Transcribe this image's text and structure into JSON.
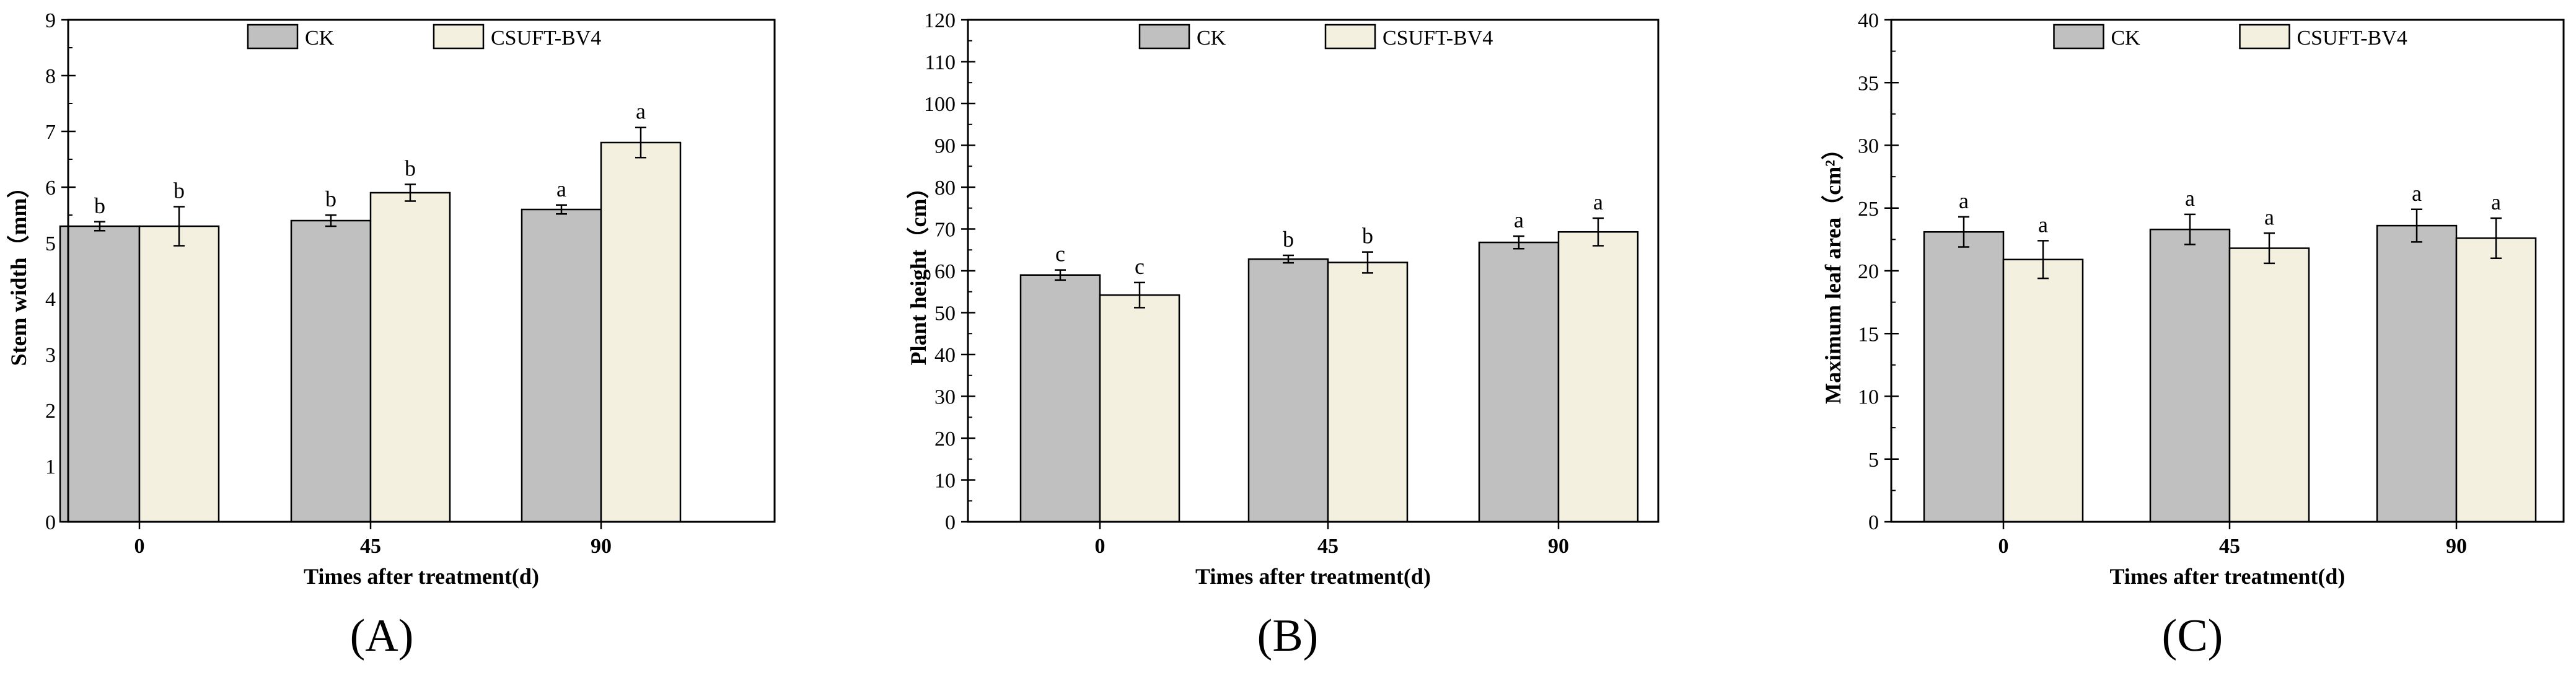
{
  "colors": {
    "ck": "#c0c0c0",
    "bv4": "#f3f0df",
    "stroke": "#000000"
  },
  "legend": {
    "series": [
      "CK",
      "CSUFT-BV4"
    ]
  },
  "chart_data": [
    {
      "type": "bar",
      "panel_label": "(A)",
      "categories": [
        "0",
        "45",
        "90"
      ],
      "series": [
        {
          "name": "CK",
          "values": [
            5.3,
            5.4,
            5.6
          ],
          "errors": [
            0.08,
            0.1,
            0.08
          ],
          "letters": [
            "b",
            "b",
            "a"
          ]
        },
        {
          "name": "CSUFT-BV4",
          "values": [
            5.3,
            5.9,
            6.8
          ],
          "errors": [
            0.35,
            0.15,
            0.27
          ],
          "letters": [
            "b",
            "b",
            "a"
          ]
        }
      ],
      "title": "",
      "xlabel": "Times after treatment(d)",
      "ylabel": "Stem width（mm）",
      "ylim": [
        0,
        9
      ],
      "yticks": [
        0,
        1,
        2,
        3,
        4,
        5,
        6,
        7,
        8,
        9
      ],
      "legend_position": "top-center"
    },
    {
      "type": "bar",
      "panel_label": "(B)",
      "categories": [
        "0",
        "45",
        "90"
      ],
      "series": [
        {
          "name": "CK",
          "values": [
            59,
            62.8,
            66.8
          ],
          "errors": [
            1.2,
            0.9,
            1.5
          ],
          "letters": [
            "c",
            "b",
            "a"
          ]
        },
        {
          "name": "CSUFT-BV4",
          "values": [
            54.2,
            62,
            69.3
          ],
          "errors": [
            3.0,
            2.5,
            3.3
          ],
          "letters": [
            "c",
            "b",
            "a"
          ]
        }
      ],
      "title": "",
      "xlabel": "Times after treatment(d)",
      "ylabel": "Plant height（cm）",
      "ylim": [
        0,
        120
      ],
      "yticks": [
        0,
        10,
        20,
        30,
        40,
        50,
        60,
        70,
        80,
        90,
        100,
        110,
        120
      ],
      "legend_position": "top-center"
    },
    {
      "type": "bar",
      "panel_label": "(C)",
      "categories": [
        "0",
        "45",
        "90"
      ],
      "series": [
        {
          "name": "CK",
          "values": [
            23.1,
            23.3,
            23.6
          ],
          "errors": [
            1.2,
            1.2,
            1.3
          ],
          "letters": [
            "a",
            "a",
            "a"
          ]
        },
        {
          "name": "CSUFT-BV4",
          "values": [
            20.9,
            21.8,
            22.6
          ],
          "errors": [
            1.5,
            1.2,
            1.6
          ],
          "letters": [
            "a",
            "a",
            "a"
          ]
        }
      ],
      "title": "",
      "xlabel": "Times after treatment(d)",
      "ylabel": "Maximum leaf area（cm²）",
      "ylim": [
        0,
        40
      ],
      "yticks": [
        0,
        5,
        10,
        15,
        20,
        25,
        30,
        35,
        40
      ],
      "legend_position": "top-center"
    }
  ]
}
